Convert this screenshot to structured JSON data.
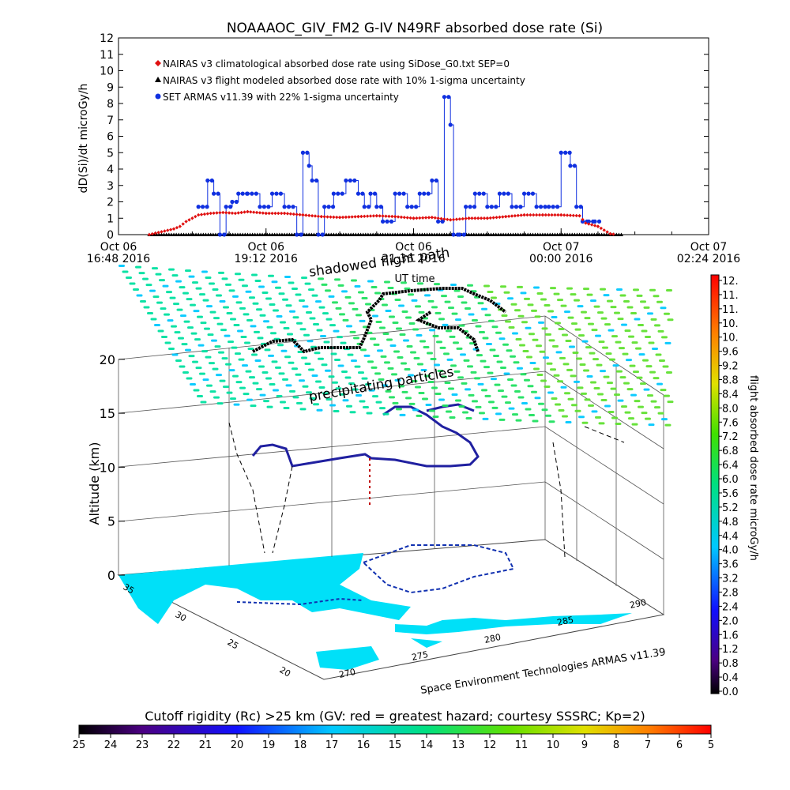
{
  "chart_data": [
    {
      "type": "scatter",
      "title": "NOAAAOC_GIV_FM2 G-IV    N49RF  absorbed dose rate (Si)",
      "ylabel": "dD(Si)/dt microGy/h",
      "xlabel": "UT time",
      "ylim": [
        0,
        12
      ],
      "yticks": [
        "0",
        "1",
        "2",
        "3",
        "4",
        "5",
        "6",
        "7",
        "8",
        "9",
        "10",
        "11",
        "12"
      ],
      "xticks": [
        {
          "line1": "Oct 06",
          "line2": "16:48 2016"
        },
        {
          "line1": "Oct 06",
          "line2": "19:12 2016"
        },
        {
          "line1": "Oct 06",
          "line2": "21:36 2016"
        },
        {
          "line1": "Oct 07",
          "line2": "00:00 2016"
        },
        {
          "line1": "Oct 07",
          "line2": "02:24 2016"
        }
      ],
      "xlim_hours": [
        0,
        9.6
      ],
      "legend": [
        {
          "label": "NAIRAS v3 climatological absorbed dose rate using SiDose_G0.txt SEP=0",
          "color": "#e01010",
          "marker": "diamond"
        },
        {
          "label": "NAIRAS v3 flight modeled absorbed dose rate with 10% 1-sigma uncertainty",
          "color": "#000000",
          "marker": "triangle"
        },
        {
          "label": "SET ARMAS v11.39 with 22% 1-sigma uncertainty",
          "color": "#1030e0",
          "marker": "circle"
        }
      ],
      "series": [
        {
          "name": "NAIRAS v3 climatological absorbed dose rate using SiDose_G0.txt SEP=0",
          "x_hours": [
            0.5,
            0.9,
            1.0,
            1.1,
            1.2,
            1.3,
            1.5,
            1.7,
            1.9,
            2.1,
            2.4,
            2.7,
            3.0,
            3.3,
            3.6,
            3.9,
            4.2,
            4.5,
            4.8,
            5.1,
            5.4,
            5.7,
            6.0,
            6.3,
            6.6,
            6.9,
            7.2,
            7.5,
            7.6,
            7.8,
            8.0,
            8.1
          ],
          "y": [
            0,
            0.35,
            0.5,
            0.8,
            1.0,
            1.2,
            1.3,
            1.35,
            1.3,
            1.4,
            1.3,
            1.3,
            1.2,
            1.1,
            1.05,
            1.1,
            1.15,
            1.1,
            1.0,
            1.05,
            0.9,
            1.0,
            1.0,
            1.1,
            1.2,
            1.2,
            1.2,
            1.15,
            0.7,
            0.5,
            0.05,
            0
          ]
        },
        {
          "name": "NAIRAS v3 flight modeled absorbed dose rate with 10% 1-sigma uncertainty",
          "x_hours": [
            0.5,
            8.2
          ],
          "y": [
            0,
            0
          ]
        },
        {
          "name": "SET ARMAS v11.39 with 22% 1-sigma uncertainty",
          "x_hours": [
            1.3,
            1.45,
            1.55,
            1.65,
            1.75,
            1.85,
            1.95,
            2.1,
            2.3,
            2.5,
            2.7,
            2.9,
            3.0,
            3.1,
            3.15,
            3.25,
            3.35,
            3.5,
            3.7,
            3.9,
            4.0,
            4.1,
            4.2,
            4.3,
            4.5,
            4.7,
            4.9,
            5.1,
            5.2,
            5.3,
            5.4,
            5.45,
            5.55,
            5.65,
            5.8,
            6.0,
            6.2,
            6.4,
            6.6,
            6.8,
            7.0,
            7.2,
            7.35,
            7.45,
            7.55,
            7.65,
            7.75
          ],
          "y": [
            1.7,
            3.3,
            2.5,
            0,
            1.7,
            2.0,
            2.5,
            2.5,
            1.7,
            2.5,
            1.7,
            0,
            5.0,
            4.2,
            3.3,
            0,
            1.7,
            2.5,
            3.3,
            2.5,
            1.7,
            2.5,
            1.7,
            0.8,
            2.5,
            1.7,
            2.5,
            3.3,
            0.8,
            8.4,
            6.7,
            0,
            0,
            1.7,
            2.5,
            1.7,
            2.5,
            1.7,
            2.5,
            1.7,
            1.7,
            5.0,
            4.2,
            1.7,
            0.8,
            0.8,
            0.8
          ]
        }
      ]
    },
    {
      "type": "scatter",
      "title": "",
      "zlabel": "Altitude (km)",
      "zticks": [
        "0",
        "5",
        "10",
        "15",
        "20"
      ],
      "lat_ticks": [
        "35",
        "30",
        "25",
        "20"
      ],
      "lon_ticks": [
        "270",
        "275",
        "280",
        "285",
        "290"
      ],
      "annotations": [
        "shadowed flight path",
        "precipitating particles",
        "Space Environment Technologies ARMAS v11.39"
      ],
      "colorbar": {
        "label": "flight absorbed dose rate microGy/h",
        "ticks": [
          "12.",
          "11.",
          "11.",
          "10.",
          "10.",
          "9.6",
          "9.2",
          "8.8",
          "8.4",
          "8.0",
          "7.6",
          "7.2",
          "6.8",
          "6.4",
          "6.0",
          "5.6",
          "5.2",
          "4.8",
          "4.4",
          "4.0",
          "3.6",
          "3.2",
          "2.8",
          "2.4",
          "2.0",
          "1.6",
          "1.2",
          "0.8",
          "0.4",
          "0.0"
        ]
      },
      "rigidity_bar": {
        "label": "Cutoff rigidity (Rc) >25 km (GV: red = greatest hazard; courtesy SSSRC; Kp=2)",
        "ticks": [
          "25",
          "24",
          "23",
          "22",
          "21",
          "20",
          "19",
          "18",
          "17",
          "16",
          "15",
          "14",
          "13",
          "12",
          "11",
          "10",
          "9",
          "8",
          "7",
          "6",
          "5"
        ]
      }
    }
  ],
  "colors": {
    "land": "#00e0f8",
    "grid": "#555555",
    "climatology": "#e01010",
    "armas": "#1030e0"
  }
}
